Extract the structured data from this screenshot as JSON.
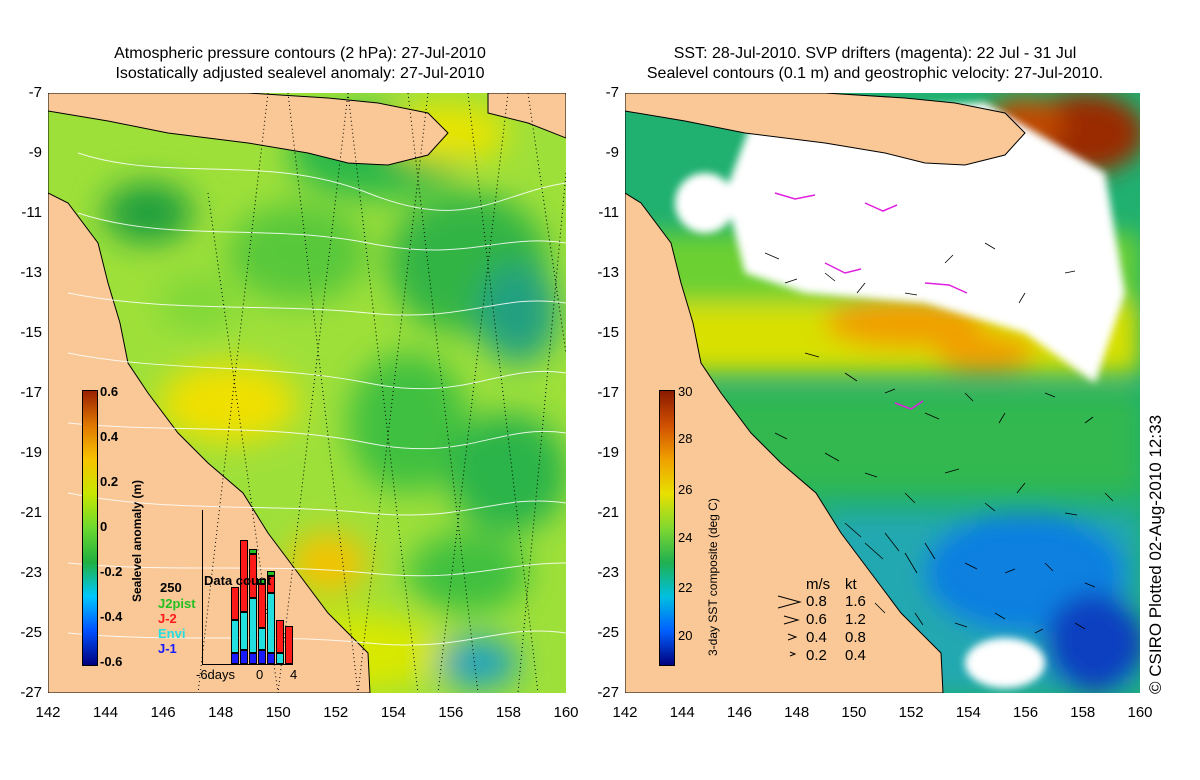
{
  "left_panel": {
    "title_line1": "Atmospheric pressure contours (2 hPa): 27-Jul-2010",
    "title_line2": "Isostatically adjusted sealevel anomaly: 27-Jul-2010",
    "colorbar": {
      "label": "Sealevel anomaly (m)",
      "ticks": [
        "0.6",
        "0.4",
        "0.2",
        "0",
        "-0.2",
        "-0.4",
        "-0.6"
      ],
      "colors": [
        "#00007f",
        "#0050ff",
        "#00c8ff",
        "#20b040",
        "#6cd92f",
        "#c8e600",
        "#f7c400",
        "#e07800",
        "#9a2000"
      ]
    },
    "data_count": {
      "title": "Data count",
      "max_label": "250",
      "x_labels": [
        "-6days",
        "0",
        "4"
      ],
      "missions": [
        {
          "name": "J2pist",
          "color": "#22c022"
        },
        {
          "name": "J-2",
          "color": "#ff1a1a"
        },
        {
          "name": "Envi",
          "color": "#22e0e0"
        },
        {
          "name": "J-1",
          "color": "#1a1aff"
        }
      ],
      "bars": [
        {
          "day": -6,
          "j1": 0,
          "envi": 0,
          "j2": 0,
          "j2pist": 0
        },
        {
          "day": -5,
          "j1": 0,
          "envi": 0,
          "j2": 0,
          "j2pist": 0
        },
        {
          "day": -4,
          "j1": 0,
          "envi": 0,
          "j2": 0,
          "j2pist": 0
        },
        {
          "day": -3,
          "j1": 20,
          "envi": 60,
          "j2": 60,
          "j2pist": 0
        },
        {
          "day": -2,
          "j1": 25,
          "envi": 70,
          "j2": 130,
          "j2pist": 0
        },
        {
          "day": -1,
          "j1": 20,
          "envi": 100,
          "j2": 80,
          "j2pist": 10
        },
        {
          "day": 0,
          "j1": 25,
          "envi": 40,
          "j2": 80,
          "j2pist": 10
        },
        {
          "day": 1,
          "j1": 20,
          "envi": 110,
          "j2": 30,
          "j2pist": 10
        },
        {
          "day": 2,
          "j1": 0,
          "envi": 20,
          "j2": 60,
          "j2pist": 0
        },
        {
          "day": 3,
          "j1": 0,
          "envi": 0,
          "j2": 70,
          "j2pist": 0
        }
      ]
    }
  },
  "right_panel": {
    "title_line1": "SST: 28-Jul-2010. SVP drifters (magenta): 22 Jul - 31 Jul",
    "title_line2": "Sealevel contours (0.1 m) and geostrophic velocity: 27-Jul-2010.",
    "colorbar": {
      "label": "3-day SST composite (deg C)",
      "ticks": [
        "30",
        "28",
        "26",
        "24",
        "22",
        "20"
      ],
      "colors": [
        "#00007f",
        "#0060ff",
        "#00c0e0",
        "#20b050",
        "#80d830",
        "#e8e000",
        "#f0a000",
        "#d05000",
        "#8a1a00"
      ]
    },
    "velocity_legend": {
      "headers": [
        "m/s",
        "kt"
      ],
      "rows": [
        {
          "ms": "0.8",
          "kt": "1.6"
        },
        {
          "ms": "0.6",
          "kt": "1.2"
        },
        {
          "ms": "0.4",
          "kt": "0.8"
        },
        {
          "ms": "0.2",
          "kt": "0.4"
        }
      ]
    }
  },
  "axes": {
    "y_ticks": [
      "-7",
      "-9",
      "-11",
      "-13",
      "-15",
      "-17",
      "-19",
      "-21",
      "-23",
      "-25",
      "-27"
    ],
    "x_ticks": [
      "142",
      "144",
      "146",
      "148",
      "150",
      "152",
      "154",
      "156",
      "158",
      "160"
    ]
  },
  "credit": "© CSIRO Plotted 02-Aug-2010 12:33",
  "colors": {
    "land": "#f9c896",
    "coast": "#000000",
    "contour": "#ffffff",
    "track": "#000000",
    "drifter": "#e020e0",
    "cloud": "#ffffff"
  }
}
